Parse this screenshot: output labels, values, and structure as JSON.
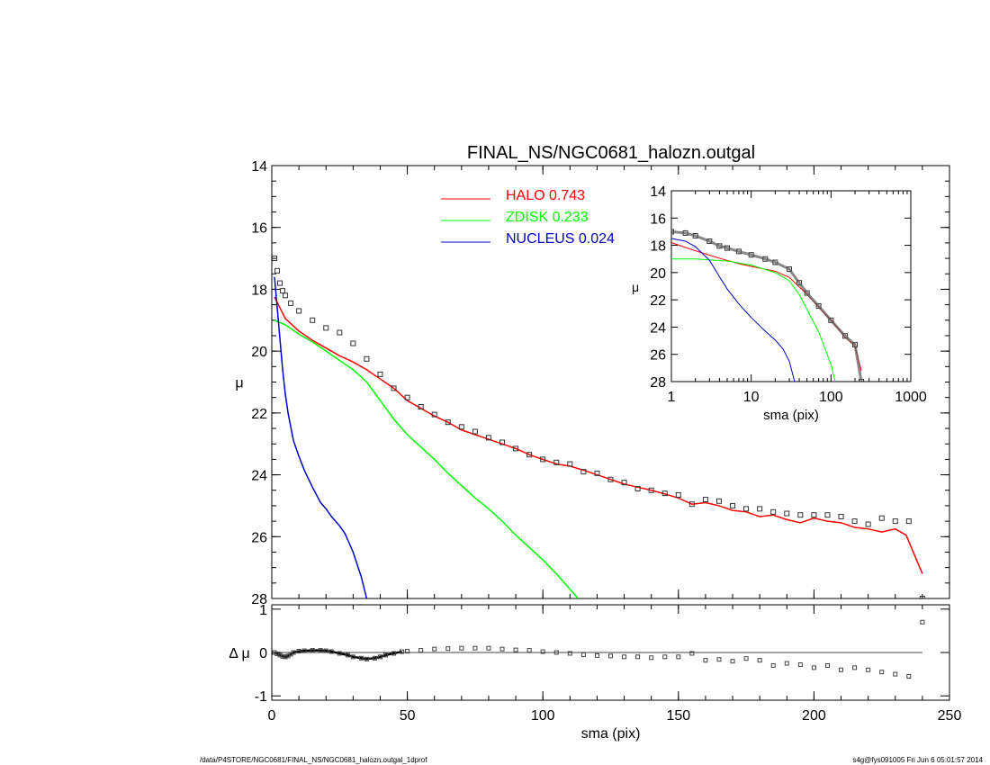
{
  "footer": {
    "left": "/data/P4STORE/NGC0681/FINAL_NS/NGC0681_halozn.outgal_1dprof",
    "right": "s4g@fys091005  Fri Jun  6 05:01:57 2014"
  },
  "chart_data": [
    {
      "panel": "main",
      "type": "line",
      "title": "FINAL_NS/NGC0681_halozn.outgal",
      "xlabel": "",
      "ylabel": "μ",
      "xlim": [
        0,
        250
      ],
      "ylim": [
        14,
        28
      ],
      "y_inverted": true,
      "xticks": [
        0,
        50,
        100,
        150,
        200,
        250
      ],
      "yticks": [
        14,
        16,
        18,
        20,
        22,
        24,
        26,
        28
      ],
      "legend_position": "top-center",
      "series": [
        {
          "name": "HALO",
          "fraction": "0.743",
          "color": "#ff0000",
          "x": [
            1,
            5,
            10,
            15,
            20,
            25,
            30,
            35,
            40,
            45,
            50,
            55,
            60,
            65,
            70,
            75,
            80,
            85,
            90,
            95,
            100,
            105,
            110,
            115,
            120,
            125,
            130,
            135,
            140,
            145,
            150,
            155,
            160,
            165,
            170,
            175,
            180,
            185,
            190,
            195,
            200,
            205,
            210,
            215,
            220,
            225,
            230,
            234,
            240
          ],
          "y": [
            18.25,
            18.95,
            19.35,
            19.65,
            19.9,
            20.15,
            20.35,
            20.6,
            20.9,
            21.2,
            21.6,
            21.85,
            22.1,
            22.3,
            22.55,
            22.7,
            22.85,
            23.0,
            23.15,
            23.35,
            23.5,
            23.65,
            23.72,
            23.85,
            24.0,
            24.15,
            24.3,
            24.4,
            24.5,
            24.62,
            24.75,
            24.95,
            24.9,
            25.0,
            25.15,
            25.2,
            25.35,
            25.3,
            25.45,
            25.55,
            25.4,
            25.5,
            25.55,
            25.7,
            25.75,
            25.85,
            25.75,
            25.95,
            27.2
          ]
        },
        {
          "name": "ZDISK",
          "fraction": "0.233",
          "color": "#00ff00",
          "x": [
            1,
            5,
            10,
            15,
            20,
            25,
            30,
            35,
            40,
            45,
            50,
            55,
            60,
            65,
            70,
            75,
            80,
            85,
            90,
            95,
            100,
            105,
            110,
            113
          ],
          "y": [
            19.0,
            19.15,
            19.45,
            19.7,
            20.0,
            20.3,
            20.6,
            21.0,
            21.6,
            22.2,
            22.7,
            23.1,
            23.5,
            23.95,
            24.35,
            24.75,
            25.1,
            25.5,
            25.95,
            26.35,
            26.75,
            27.2,
            27.7,
            28.0
          ]
        },
        {
          "name": "NUCLEUS",
          "fraction": "0.024",
          "color": "#0000cc",
          "x": [
            1,
            2,
            3,
            4,
            5,
            6,
            8,
            10,
            12,
            15,
            18,
            20,
            22,
            25,
            27,
            30,
            33,
            35
          ],
          "y": [
            17.6,
            18.6,
            19.6,
            20.6,
            21.4,
            22.0,
            22.9,
            23.4,
            23.85,
            24.4,
            24.9,
            25.1,
            25.35,
            25.65,
            25.9,
            26.5,
            27.3,
            28.0
          ]
        },
        {
          "name": "",
          "role": "observed profile",
          "marker": "open square",
          "color": "#000000",
          "x": [
            1,
            2,
            3,
            4,
            5,
            7,
            10,
            15,
            20,
            25,
            30,
            35,
            40,
            45,
            50,
            55,
            60,
            65,
            70,
            75,
            80,
            85,
            90,
            95,
            100,
            105,
            110,
            115,
            120,
            125,
            130,
            135,
            140,
            145,
            150,
            155,
            160,
            165,
            170,
            175,
            180,
            185,
            190,
            195,
            200,
            205,
            210,
            215,
            220,
            225,
            230,
            235,
            240
          ],
          "y": [
            17.0,
            17.4,
            17.8,
            18.05,
            18.2,
            18.45,
            18.7,
            19.0,
            19.25,
            19.4,
            19.75,
            20.25,
            20.75,
            21.2,
            21.5,
            21.8,
            22.05,
            22.3,
            22.45,
            22.6,
            22.8,
            22.95,
            23.15,
            23.35,
            23.5,
            23.6,
            23.65,
            23.9,
            23.95,
            24.15,
            24.25,
            24.45,
            24.5,
            24.6,
            24.65,
            24.95,
            24.8,
            24.85,
            25.0,
            25.1,
            25.1,
            25.2,
            25.25,
            25.3,
            25.3,
            25.3,
            25.35,
            25.5,
            25.6,
            25.4,
            25.5,
            25.5,
            28.0
          ]
        }
      ]
    },
    {
      "panel": "inset",
      "type": "line",
      "xlabel": "sma (pix)",
      "ylabel": "μ",
      "x_scale": "log",
      "xlim": [
        1,
        1000
      ],
      "ylim": [
        14,
        28
      ],
      "y_inverted": true,
      "xticks": [
        1,
        10,
        100,
        1000
      ],
      "yticks": [
        14,
        16,
        18,
        20,
        22,
        24,
        26,
        28
      ],
      "series": [
        {
          "name": "",
          "role": "halo",
          "color": "#ff0000",
          "x": [
            1,
            2,
            4,
            7,
            10,
            20,
            30,
            50,
            70,
            100,
            150,
            200,
            240
          ],
          "y": [
            17.8,
            18.4,
            18.95,
            19.35,
            19.55,
            19.9,
            20.35,
            21.6,
            22.55,
            23.5,
            24.75,
            25.4,
            27.2
          ]
        },
        {
          "name": "",
          "role": "disk",
          "color": "#00ff00",
          "x": [
            1,
            2,
            5,
            10,
            20,
            30,
            40,
            50,
            70,
            100,
            113
          ],
          "y": [
            19.0,
            19.0,
            19.15,
            19.45,
            20.0,
            20.6,
            21.6,
            22.7,
            24.35,
            26.75,
            28.0
          ]
        },
        {
          "name": "",
          "role": "nucleus",
          "color": "#0000cc",
          "x": [
            1,
            1.5,
            2,
            3,
            4,
            5,
            7,
            10,
            15,
            20,
            25,
            30,
            35
          ],
          "y": [
            17.5,
            17.7,
            18.1,
            19.1,
            20.3,
            21.2,
            22.3,
            23.3,
            24.3,
            24.95,
            25.6,
            26.5,
            28.0
          ]
        },
        {
          "name": "",
          "role": "observed profile",
          "marker": "open square",
          "color": "#000000",
          "x": [
            1,
            1.5,
            2,
            3,
            4,
            5,
            7,
            10,
            15,
            20,
            30,
            40,
            50,
            70,
            100,
            150,
            200,
            240
          ],
          "y": [
            17.0,
            17.1,
            17.3,
            17.7,
            18.05,
            18.2,
            18.45,
            18.7,
            19.0,
            19.25,
            19.75,
            20.75,
            21.5,
            22.45,
            23.5,
            24.65,
            25.3,
            28.0
          ]
        }
      ]
    },
    {
      "panel": "residual",
      "type": "scatter",
      "xlabel": "sma (pix)",
      "ylabel": "Δ μ",
      "xlim": [
        0,
        250
      ],
      "ylim": [
        -1.1,
        1.1
      ],
      "xticks": [
        0,
        50,
        100,
        150,
        200,
        250
      ],
      "yticks": [
        -1,
        0,
        1
      ],
      "zero_line": true,
      "series": [
        {
          "name": "",
          "marker": "open square",
          "color": "#000000",
          "x": [
            1,
            2,
            3,
            4,
            5,
            6,
            7,
            8,
            10,
            12,
            15,
            18,
            20,
            22,
            25,
            28,
            30,
            33,
            35,
            38,
            40,
            42,
            45,
            48,
            50,
            55,
            60,
            65,
            70,
            75,
            80,
            85,
            90,
            95,
            100,
            105,
            110,
            115,
            120,
            125,
            130,
            135,
            140,
            145,
            150,
            155,
            160,
            165,
            170,
            175,
            180,
            185,
            190,
            195,
            200,
            205,
            210,
            215,
            220,
            225,
            230,
            235,
            240
          ],
          "y": [
            0.0,
            -0.03,
            -0.06,
            -0.09,
            -0.1,
            -0.08,
            -0.04,
            0.0,
            0.03,
            0.04,
            0.05,
            0.05,
            0.04,
            0.02,
            -0.02,
            -0.06,
            -0.1,
            -0.13,
            -0.15,
            -0.13,
            -0.1,
            -0.06,
            -0.02,
            0.02,
            0.03,
            0.05,
            0.08,
            0.09,
            0.1,
            0.1,
            0.1,
            0.08,
            0.06,
            0.05,
            0.02,
            0.0,
            -0.02,
            -0.05,
            -0.07,
            -0.08,
            -0.1,
            -0.1,
            -0.12,
            -0.1,
            -0.1,
            -0.02,
            -0.18,
            -0.16,
            -0.2,
            -0.14,
            -0.18,
            -0.3,
            -0.25,
            -0.28,
            -0.35,
            -0.3,
            -0.4,
            -0.35,
            -0.4,
            -0.45,
            -0.5,
            -0.55,
            0.7
          ]
        }
      ]
    }
  ]
}
